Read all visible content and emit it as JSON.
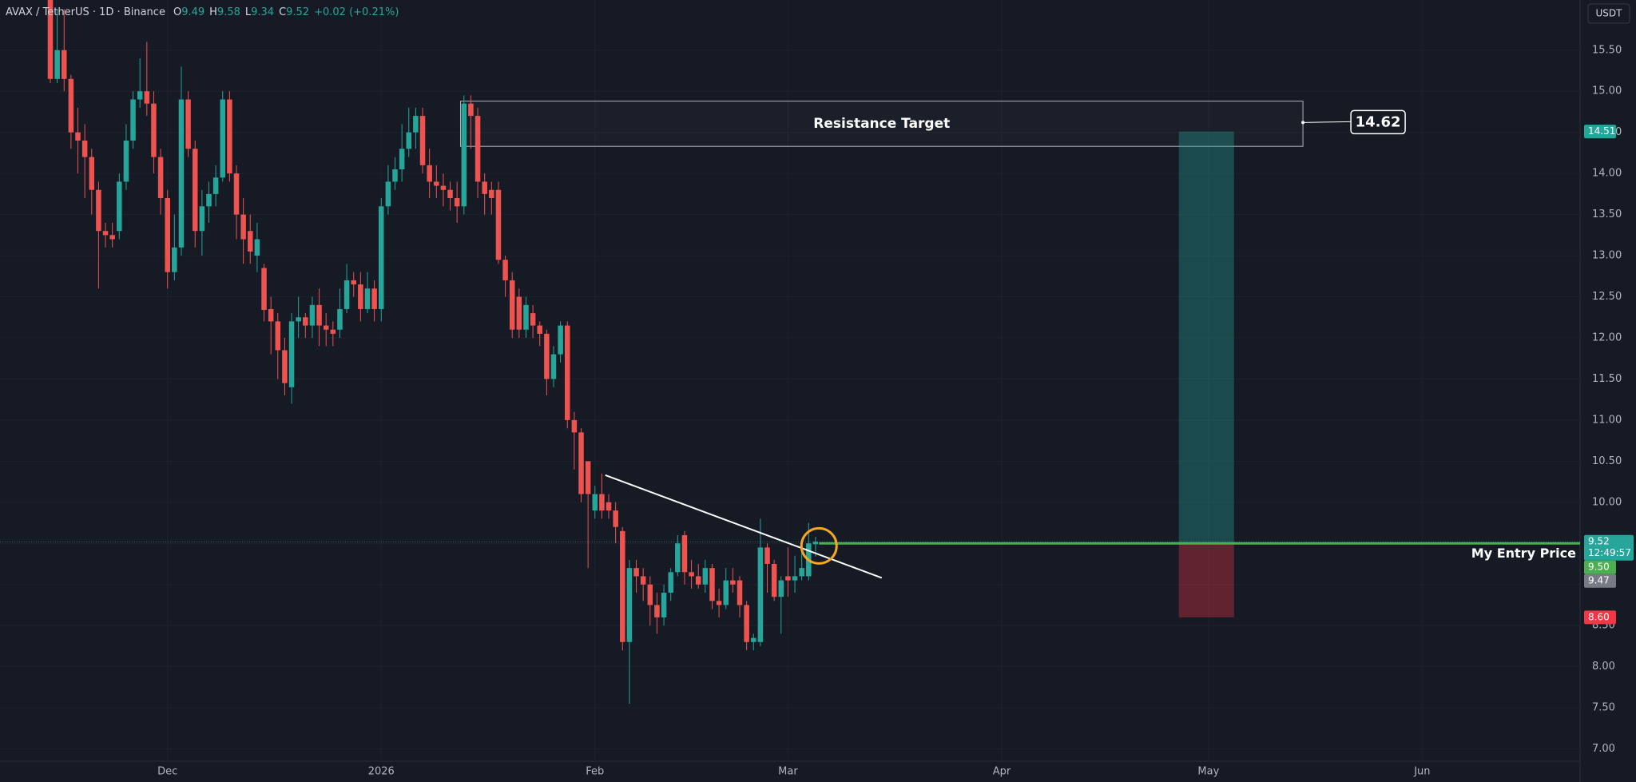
{
  "chart_data": {
    "type": "candlestick",
    "title": "AVAX / TetherUS · 1D · Binance",
    "ohlc_labels": [
      "O",
      "H",
      "L",
      "C"
    ],
    "change": "+0.02 (+0.21%)",
    "currency": "USDT",
    "up_color": "#26a69a",
    "down_color": "#ef5350",
    "open": [
      16.2,
      15.15,
      15.5,
      15.15,
      14.5,
      14.4,
      14.2,
      13.8,
      13.3,
      13.25,
      13.3,
      13.9,
      14.4,
      14.9,
      15.0,
      14.85,
      14.2,
      13.7,
      12.8,
      13.1,
      14.9,
      14.3,
      13.3,
      13.6,
      13.75,
      13.95,
      14.9,
      14.0,
      13.5,
      13.3,
      13.0,
      12.85,
      12.35,
      12.2,
      11.85,
      11.4,
      12.2,
      12.25,
      12.15,
      12.4,
      12.15,
      12.1,
      12.1,
      12.35,
      12.7,
      12.65,
      12.35,
      12.6,
      12.35,
      13.6,
      13.9,
      14.05,
      14.3,
      14.5,
      14.7,
      14.1,
      13.9,
      13.85,
      13.8,
      13.7,
      13.6,
      14.85,
      14.7,
      13.9,
      13.8,
      13.8,
      12.95,
      12.7,
      12.5,
      12.1,
      12.3,
      12.15,
      12.05,
      11.5,
      11.8,
      12.15,
      11.0,
      10.85,
      10.5,
      9.9,
      10.1,
      10.0,
      9.9,
      9.65,
      8.3,
      9.2,
      9.1,
      9.0,
      8.75,
      8.6,
      8.9,
      9.15,
      9.6,
      9.15,
      9.1,
      9.0,
      9.2,
      8.8,
      8.75,
      9.05,
      9.05,
      8.75,
      8.3,
      8.3,
      9.45,
      9.25,
      8.85,
      9.1,
      9.05,
      9.1,
      9.1,
      9.49
    ],
    "high": [
      16.3,
      16.0,
      16.0,
      15.2,
      14.8,
      14.6,
      14.3,
      13.9,
      13.4,
      13.4,
      14.0,
      14.6,
      15.0,
      15.4,
      15.6,
      15.0,
      14.3,
      13.8,
      13.5,
      15.3,
      15.0,
      14.4,
      13.8,
      13.9,
      14.1,
      15.0,
      15.0,
      14.1,
      13.7,
      13.5,
      13.4,
      12.9,
      12.5,
      12.3,
      12.0,
      12.3,
      12.5,
      12.3,
      12.5,
      12.6,
      12.3,
      12.2,
      12.6,
      12.9,
      12.8,
      12.8,
      12.8,
      12.7,
      13.7,
      14.1,
      14.2,
      14.6,
      14.8,
      14.8,
      14.8,
      14.3,
      14.1,
      14.0,
      13.9,
      13.9,
      14.95,
      14.95,
      14.8,
      14.0,
      13.9,
      13.9,
      13.0,
      12.8,
      12.6,
      12.5,
      12.4,
      12.2,
      12.1,
      11.9,
      12.2,
      12.2,
      11.1,
      10.9,
      10.5,
      10.2,
      10.35,
      10.1,
      10.0,
      9.7,
      9.3,
      9.3,
      9.2,
      9.1,
      8.9,
      9.0,
      9.2,
      9.6,
      9.65,
      9.3,
      9.25,
      9.3,
      9.25,
      8.95,
      9.2,
      9.2,
      9.1,
      8.8,
      8.4,
      9.8,
      9.5,
      9.3,
      9.1,
      9.45,
      9.35,
      9.4,
      9.75,
      9.58
    ],
    "low": [
      15.1,
      15.1,
      15.0,
      14.3,
      14.0,
      13.7,
      13.5,
      12.6,
      13.1,
      13.1,
      13.2,
      13.8,
      14.3,
      14.8,
      14.7,
      14.0,
      13.5,
      12.6,
      12.7,
      13.0,
      14.2,
      13.1,
      13.0,
      13.4,
      13.6,
      13.9,
      13.9,
      13.2,
      12.9,
      12.9,
      12.8,
      12.2,
      11.8,
      11.5,
      11.3,
      11.2,
      12.0,
      12.0,
      12.0,
      11.9,
      11.9,
      11.9,
      12.0,
      12.3,
      12.5,
      12.2,
      12.3,
      12.2,
      12.2,
      13.5,
      13.8,
      13.9,
      14.2,
      14.3,
      14.0,
      13.7,
      13.7,
      13.6,
      13.55,
      13.4,
      13.5,
      14.3,
      13.7,
      13.5,
      13.5,
      12.9,
      12.5,
      12.0,
      12.0,
      12.0,
      12.0,
      11.9,
      11.3,
      11.4,
      11.7,
      10.9,
      10.4,
      10.0,
      9.2,
      9.8,
      9.8,
      9.8,
      9.5,
      8.2,
      7.55,
      8.9,
      8.8,
      8.5,
      8.4,
      8.5,
      8.8,
      9.1,
      9.0,
      8.95,
      8.95,
      8.9,
      8.7,
      8.6,
      8.7,
      8.9,
      8.6,
      8.2,
      8.2,
      8.25,
      8.9,
      8.8,
      8.4,
      8.85,
      8.9,
      9.05,
      9.05,
      9.34
    ],
    "close": [
      15.15,
      15.5,
      15.15,
      14.5,
      14.4,
      14.2,
      13.8,
      13.3,
      13.25,
      13.2,
      13.9,
      14.4,
      14.9,
      15.0,
      14.85,
      14.2,
      13.7,
      12.8,
      13.1,
      14.9,
      14.3,
      13.3,
      13.6,
      13.75,
      13.95,
      14.9,
      14.0,
      13.5,
      13.2,
      13.05,
      13.2,
      12.34,
      12.2,
      11.85,
      11.45,
      12.2,
      12.25,
      12.15,
      12.4,
      12.15,
      12.1,
      12.05,
      12.35,
      12.7,
      12.65,
      12.35,
      12.6,
      12.35,
      13.6,
      13.9,
      14.05,
      14.3,
      14.5,
      14.7,
      14.1,
      13.9,
      13.85,
      13.8,
      13.7,
      13.6,
      14.85,
      14.7,
      13.9,
      13.75,
      13.7,
      12.95,
      12.7,
      12.1,
      12.1,
      12.4,
      12.15,
      12.05,
      11.5,
      11.8,
      12.15,
      11.0,
      10.85,
      10.1,
      10.1,
      10.1,
      9.9,
      9.9,
      9.7,
      8.3,
      9.2,
      9.1,
      9.0,
      8.75,
      8.6,
      8.9,
      9.15,
      9.5,
      9.15,
      9.1,
      9.0,
      9.2,
      8.8,
      8.75,
      9.05,
      9.0,
      8.75,
      8.3,
      8.35,
      9.45,
      9.25,
      8.85,
      9.05,
      9.05,
      9.1,
      9.2,
      9.5,
      9.52
    ],
    "xlim": [
      -7.3,
      221.9
    ],
    "ylim": [
      6.85,
      16.11
    ],
    "xticks": [
      {
        "value": 17,
        "label": "Dec"
      },
      {
        "value": 48,
        "label": "2026"
      },
      {
        "value": 79,
        "label": "Feb"
      },
      {
        "value": 107,
        "label": "Mar"
      },
      {
        "value": 138,
        "label": "Apr"
      },
      {
        "value": 168,
        "label": "May"
      },
      {
        "value": 199,
        "label": "Jun"
      }
    ],
    "yticks": [
      {
        "value": 7,
        "label": "7.00"
      },
      {
        "value": 7.5,
        "label": "7.50"
      },
      {
        "value": 8,
        "label": "8.00"
      },
      {
        "value": 8.5,
        "label": "8.50"
      },
      {
        "value": 9,
        "label": "9.00"
      },
      {
        "value": 9.5,
        "label": "9.50"
      },
      {
        "value": 10,
        "label": "10.00"
      },
      {
        "value": 10.5,
        "label": "10.50"
      },
      {
        "value": 11,
        "label": "11.00"
      },
      {
        "value": 11.5,
        "label": "11.50"
      },
      {
        "value": 12,
        "label": "12.00"
      },
      {
        "value": 12.5,
        "label": "12.50"
      },
      {
        "value": 13,
        "label": "13.00"
      },
      {
        "value": 13.5,
        "label": "13.50"
      },
      {
        "value": 14,
        "label": "14.00"
      },
      {
        "value": 14.5,
        "label": "14.50"
      },
      {
        "value": 15,
        "label": "15.00"
      },
      {
        "value": 15.5,
        "label": "15.50"
      }
    ],
    "grid": true,
    "price_labels": [
      {
        "value": 14.51,
        "color": "#26a69a"
      },
      {
        "value": 9.52,
        "color": "#26a69a",
        "countdown": "12:49:57"
      },
      {
        "value": 9.5,
        "label": "9.50",
        "color": "#4caf50"
      },
      {
        "value": 9.47,
        "color": "#787b86"
      },
      {
        "value": 8.6,
        "label": "8.60",
        "color": "#f23645"
      }
    ],
    "annotations": {
      "resistance": {
        "label": "Resistance Target",
        "x": [
          59.5,
          181.7
        ],
        "y": [
          14.33,
          14.88
        ],
        "callout": 14.62
      },
      "trendline": {
        "x": [
          80.5,
          120.6
        ],
        "y": [
          10.33,
          9.08
        ],
        "color": "#ffffff"
      },
      "circle": {
        "x": 111.5,
        "y": 9.47,
        "color": "#f5a623"
      },
      "entry": {
        "label": "My Entry Price",
        "value": 9.5,
        "x": 111.5,
        "color": "#4caf50"
      },
      "position": {
        "x": [
          163.7,
          171.7
        ],
        "target": 14.51,
        "entry": 9.5,
        "stop": 8.6
      }
    }
  }
}
